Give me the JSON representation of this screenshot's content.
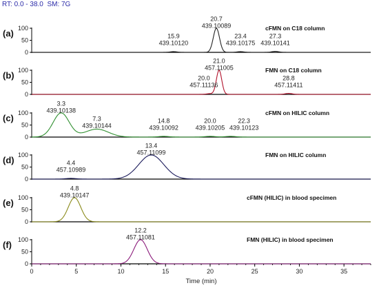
{
  "header": {
    "rt_label": "RT:",
    "rt_range": "0.0 - 38.0",
    "sm_label": "SM:",
    "sm_value": "7G"
  },
  "chart_data": {
    "type": "line",
    "xlabel": "Time (min)",
    "xlim": [
      0,
      38
    ],
    "x_ticks": [
      0,
      5,
      10,
      15,
      20,
      25,
      30,
      35
    ],
    "ylim": [
      0,
      100
    ],
    "y_ticks": [
      0,
      50,
      100
    ],
    "panels": [
      {
        "letter": "(a)",
        "title": "cFMN on C18 column",
        "color": "#222222",
        "peaks": [
          {
            "rt": 20.7,
            "mz": "439.10089",
            "height": 100,
            "width": 0.35
          },
          {
            "rt": 15.9,
            "mz": "439.10120",
            "height": 3,
            "width": 0.4
          },
          {
            "rt": 23.4,
            "mz": "439.10175",
            "height": 3,
            "width": 0.4
          },
          {
            "rt": 27.3,
            "mz": "439.10141",
            "height": 4,
            "width": 0.4
          }
        ],
        "labels": [
          {
            "rt_text": "20.7",
            "mz_text": "439.10089",
            "x": 20.7,
            "y": 102
          },
          {
            "rt_text": "15.9",
            "mz_text": "439.10120",
            "x": 15.9,
            "y": 30
          },
          {
            "rt_text": "23.4",
            "mz_text": "439.10175",
            "x": 23.4,
            "y": 30
          },
          {
            "rt_text": "27.3",
            "mz_text": "439.10141",
            "x": 27.3,
            "y": 30
          }
        ]
      },
      {
        "letter": "(b)",
        "title": "FMN on C18 column",
        "color": "#b0102a",
        "peaks": [
          {
            "rt": 21.0,
            "mz": "457.11005",
            "height": 100,
            "width": 0.3
          },
          {
            "rt": 20.0,
            "mz": "457.11136",
            "height": 3,
            "width": 0.4
          },
          {
            "rt": 28.8,
            "mz": "457.11411",
            "height": 4,
            "width": 0.4
          }
        ],
        "labels": [
          {
            "rt_text": "21.0",
            "mz_text": "457.11005",
            "x": 21.0,
            "y": 102
          },
          {
            "rt_text": "20.0",
            "mz_text": "457.11136",
            "x": 19.3,
            "y": 30
          },
          {
            "rt_text": "28.8",
            "mz_text": "457.11411",
            "x": 28.8,
            "y": 30
          }
        ]
      },
      {
        "letter": "(c)",
        "title": "cFMN on HILIC column",
        "color": "#2f8f2f",
        "peaks": [
          {
            "rt": 3.3,
            "mz": "439.10138",
            "height": 100,
            "width": 0.9
          },
          {
            "rt": 7.3,
            "mz": "439.10144",
            "height": 33,
            "width": 1.3
          },
          {
            "rt": 14.8,
            "mz": "439.10092",
            "height": 3,
            "width": 0.6
          },
          {
            "rt": 20.0,
            "mz": "439.10205",
            "height": 3,
            "width": 0.6
          },
          {
            "rt": 22.3,
            "mz": "439.10123",
            "height": 3,
            "width": 0.6
          }
        ],
        "labels": [
          {
            "rt_text": "3.3",
            "mz_text": "439.10138",
            "x": 3.3,
            "y": 102
          },
          {
            "rt_text": "7.3",
            "mz_text": "439.10144",
            "x": 7.3,
            "y": 38
          },
          {
            "rt_text": "14.8",
            "mz_text": "439.10092",
            "x": 14.8,
            "y": 30
          },
          {
            "rt_text": "20.0",
            "mz_text": "439.10205",
            "x": 20.0,
            "y": 30
          },
          {
            "rt_text": "22.3",
            "mz_text": "439.10123",
            "x": 23.8,
            "y": 30
          }
        ]
      },
      {
        "letter": "(d)",
        "title": "FMN on HILIC column",
        "color": "#1a1a5a",
        "peaks": [
          {
            "rt": 13.4,
            "mz": "457.11099",
            "height": 100,
            "width": 1.4
          },
          {
            "rt": 4.4,
            "mz": "457.10989",
            "height": 3,
            "width": 0.6
          }
        ],
        "labels": [
          {
            "rt_text": "13.4",
            "mz_text": "457.11099",
            "x": 13.4,
            "y": 102
          },
          {
            "rt_text": "4.4",
            "mz_text": "457.10989",
            "x": 4.4,
            "y": 30
          }
        ]
      },
      {
        "letter": "(e)",
        "title": "cFMN (HILIC) in blood specimen",
        "color": "#8a8a1a",
        "peaks": [
          {
            "rt": 4.8,
            "mz": "439.10147",
            "height": 100,
            "width": 0.7
          }
        ],
        "labels": [
          {
            "rt_text": "4.8",
            "mz_text": "439.10147",
            "x": 4.8,
            "y": 102
          }
        ]
      },
      {
        "letter": "(f)",
        "title": "FMN (HILIC) in blood specimen",
        "color": "#8a1a7a",
        "peaks": [
          {
            "rt": 12.2,
            "mz": "457.11081",
            "height": 100,
            "width": 0.75
          }
        ],
        "labels": [
          {
            "rt_text": "12.2",
            "mz_text": "457.11081",
            "x": 12.2,
            "y": 102
          }
        ]
      }
    ]
  }
}
